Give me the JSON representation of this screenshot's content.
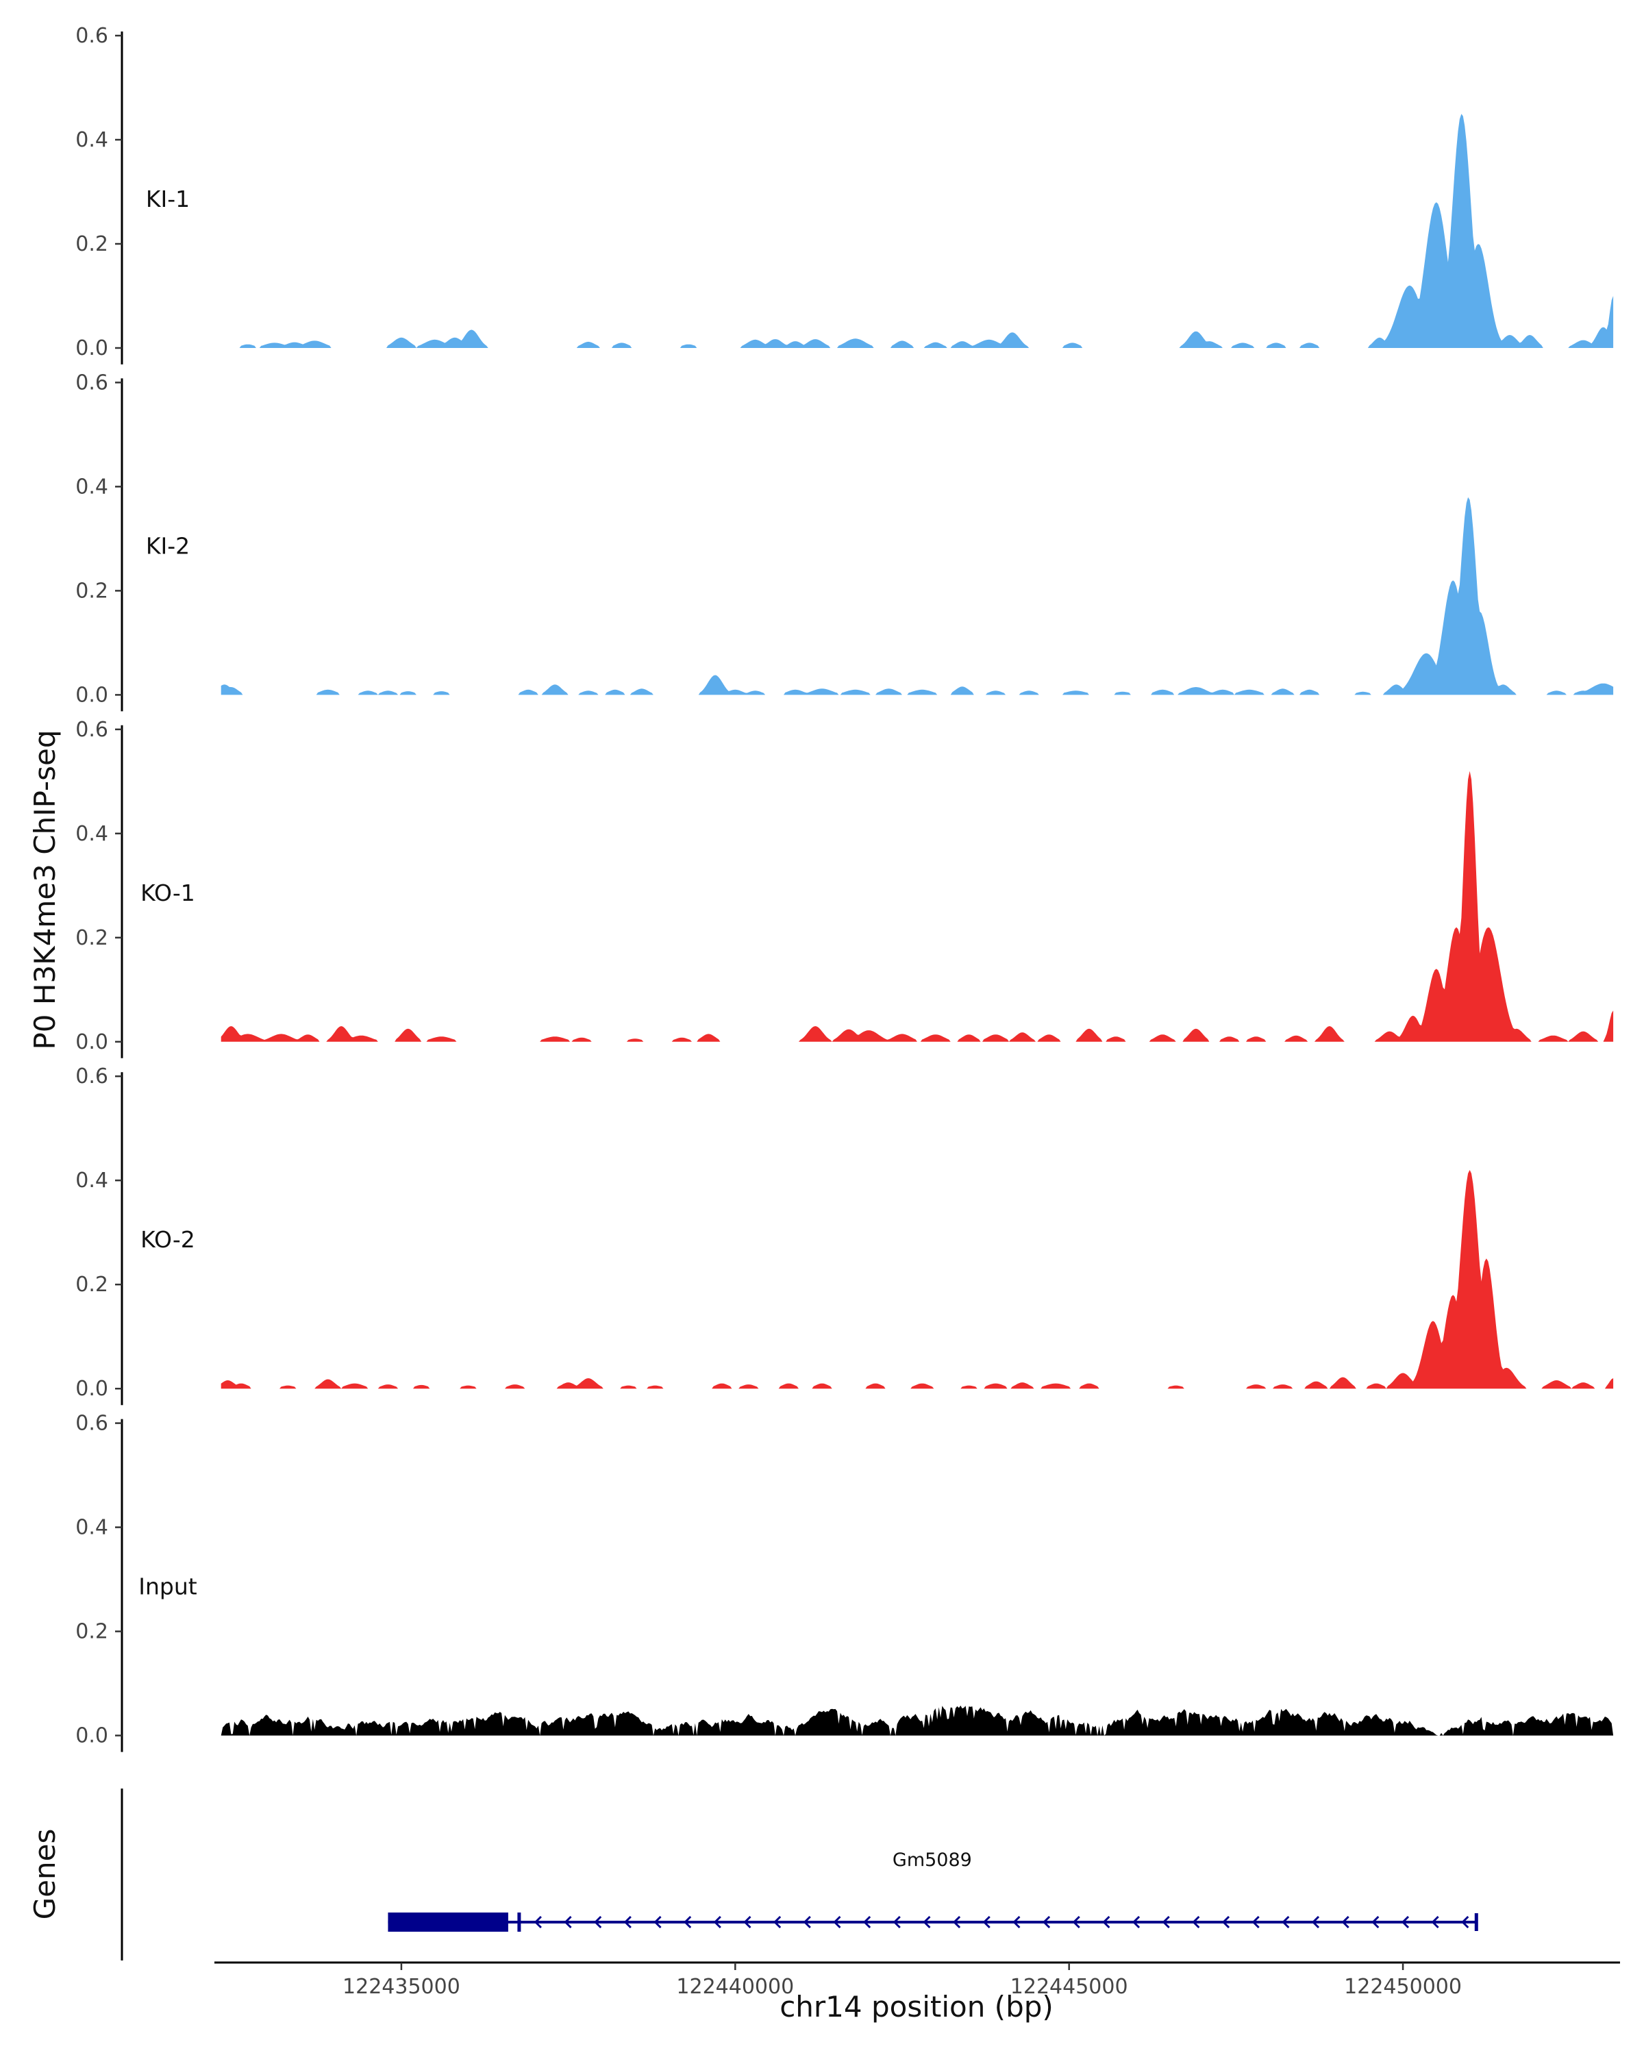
{
  "chart_data": {
    "type": "area",
    "ylabel": "P0 H3K4me3 ChIP-seq",
    "xlabel": "chr14 position (bp)",
    "genes_label": "Genes",
    "xlim": [
      122432200,
      122453200
    ],
    "ylim": [
      0,
      0.6
    ],
    "y_ticks": [
      0.0,
      0.2,
      0.4,
      0.6
    ],
    "y_tick_labels": [
      "0.0",
      "0.2",
      "0.4",
      "0.6"
    ],
    "x_ticks": [
      122435000,
      122440000,
      122445000,
      122450000
    ],
    "x_tick_labels": [
      "122435000",
      "122440000",
      "122445000",
      "122450000"
    ],
    "gene": {
      "name": "Gm5089",
      "start": 122434800,
      "end": 122451100,
      "strand": "-",
      "thick_start": 122434800,
      "thick_end": 122436600,
      "color": "#00008B"
    },
    "tracks": [
      {
        "label": "KI-1",
        "color": "#5DADEC",
        "peaks": [
          [
            122432700,
            0.007,
            100
          ],
          [
            122433100,
            0.01,
            150
          ],
          [
            122433400,
            0.011,
            130
          ],
          [
            122433700,
            0.014,
            150
          ],
          [
            122435000,
            0.02,
            120
          ],
          [
            122435500,
            0.016,
            150
          ],
          [
            122435800,
            0.02,
            120
          ],
          [
            122436050,
            0.035,
            110
          ],
          [
            122437800,
            0.012,
            100
          ],
          [
            122438300,
            0.01,
            100
          ],
          [
            122439300,
            0.007,
            100
          ],
          [
            122440300,
            0.016,
            120
          ],
          [
            122440600,
            0.017,
            110
          ],
          [
            122440900,
            0.013,
            100
          ],
          [
            122441200,
            0.017,
            120
          ],
          [
            122441800,
            0.018,
            150
          ],
          [
            122442500,
            0.014,
            100
          ],
          [
            122443000,
            0.011,
            100
          ],
          [
            122443400,
            0.013,
            100
          ],
          [
            122443800,
            0.016,
            150
          ],
          [
            122444150,
            0.03,
            110
          ],
          [
            122445050,
            0.01,
            100
          ],
          [
            122446900,
            0.032,
            110
          ],
          [
            122447100,
            0.013,
            110
          ],
          [
            122447600,
            0.01,
            110
          ],
          [
            122448100,
            0.01,
            100
          ],
          [
            122448600,
            0.01,
            100
          ],
          [
            122449650,
            0.02,
            90
          ],
          [
            122450100,
            0.12,
            180
          ],
          [
            122450500,
            0.28,
            170
          ],
          [
            122450880,
            0.45,
            140
          ],
          [
            122451130,
            0.2,
            150
          ],
          [
            122451600,
            0.025,
            110
          ],
          [
            122451900,
            0.025,
            100
          ],
          [
            122452700,
            0.015,
            120
          ],
          [
            122453000,
            0.04,
            100
          ],
          [
            122453150,
            0.1,
            60
          ]
        ]
      },
      {
        "label": "KI-2",
        "color": "#5DADEC",
        "peaks": [
          [
            122432350,
            0.02,
            100
          ],
          [
            122432450,
            0.015,
            100
          ],
          [
            122433900,
            0.01,
            120
          ],
          [
            122434500,
            0.008,
            100
          ],
          [
            122434800,
            0.008,
            100
          ],
          [
            122435100,
            0.007,
            100
          ],
          [
            122435600,
            0.007,
            100
          ],
          [
            122436900,
            0.01,
            100
          ],
          [
            122437300,
            0.02,
            100
          ],
          [
            122437800,
            0.008,
            100
          ],
          [
            122438200,
            0.01,
            100
          ],
          [
            122438600,
            0.012,
            100
          ],
          [
            122439700,
            0.038,
            110
          ],
          [
            122440000,
            0.01,
            110
          ],
          [
            122440300,
            0.008,
            100
          ],
          [
            122440900,
            0.01,
            120
          ],
          [
            122441300,
            0.012,
            150
          ],
          [
            122441800,
            0.01,
            150
          ],
          [
            122442300,
            0.012,
            120
          ],
          [
            122442800,
            0.01,
            150
          ],
          [
            122443400,
            0.016,
            100
          ],
          [
            122443900,
            0.008,
            100
          ],
          [
            122444400,
            0.008,
            100
          ],
          [
            122445100,
            0.008,
            150
          ],
          [
            122445800,
            0.006,
            120
          ],
          [
            122446400,
            0.01,
            120
          ],
          [
            122446900,
            0.015,
            150
          ],
          [
            122447300,
            0.01,
            120
          ],
          [
            122447700,
            0.01,
            150
          ],
          [
            122448200,
            0.012,
            100
          ],
          [
            122448600,
            0.01,
            100
          ],
          [
            122449400,
            0.006,
            100
          ],
          [
            122449900,
            0.02,
            100
          ],
          [
            122450350,
            0.08,
            180
          ],
          [
            122450750,
            0.22,
            150
          ],
          [
            122450980,
            0.38,
            120
          ],
          [
            122451150,
            0.16,
            130
          ],
          [
            122451500,
            0.02,
            100
          ],
          [
            122452300,
            0.008,
            100
          ],
          [
            122452700,
            0.008,
            100
          ],
          [
            122453000,
            0.022,
            180
          ]
        ]
      },
      {
        "label": "KO-1",
        "color": "#EE2C2C",
        "peaks": [
          [
            122432450,
            0.03,
            100
          ],
          [
            122432700,
            0.015,
            150
          ],
          [
            122433200,
            0.015,
            150
          ],
          [
            122433600,
            0.014,
            100
          ],
          [
            122434100,
            0.03,
            100
          ],
          [
            122434400,
            0.012,
            150
          ],
          [
            122435100,
            0.025,
            100
          ],
          [
            122435600,
            0.01,
            150
          ],
          [
            122437300,
            0.01,
            150
          ],
          [
            122437700,
            0.008,
            100
          ],
          [
            122438500,
            0.006,
            100
          ],
          [
            122439200,
            0.008,
            100
          ],
          [
            122439600,
            0.015,
            100
          ],
          [
            122441200,
            0.03,
            110
          ],
          [
            122441700,
            0.024,
            120
          ],
          [
            122442000,
            0.022,
            150
          ],
          [
            122442500,
            0.015,
            130
          ],
          [
            122443000,
            0.014,
            130
          ],
          [
            122443500,
            0.014,
            100
          ],
          [
            122443900,
            0.014,
            120
          ],
          [
            122444300,
            0.018,
            100
          ],
          [
            122444700,
            0.014,
            100
          ],
          [
            122445300,
            0.025,
            100
          ],
          [
            122445700,
            0.01,
            100
          ],
          [
            122446400,
            0.014,
            110
          ],
          [
            122446900,
            0.025,
            100
          ],
          [
            122447400,
            0.01,
            100
          ],
          [
            122447800,
            0.01,
            100
          ],
          [
            122448400,
            0.012,
            100
          ],
          [
            122448900,
            0.03,
            100
          ],
          [
            122449800,
            0.02,
            110
          ],
          [
            122450150,
            0.05,
            110
          ],
          [
            122450500,
            0.14,
            130
          ],
          [
            122450800,
            0.22,
            140
          ],
          [
            122451000,
            0.52,
            100
          ],
          [
            122451280,
            0.22,
            180
          ],
          [
            122451700,
            0.025,
            110
          ],
          [
            122452250,
            0.012,
            130
          ],
          [
            122452700,
            0.02,
            110
          ],
          [
            122453150,
            0.06,
            60
          ]
        ]
      },
      {
        "label": "KO-2",
        "color": "#EE2C2C",
        "peaks": [
          [
            122432400,
            0.016,
            100
          ],
          [
            122432600,
            0.01,
            100
          ],
          [
            122433300,
            0.006,
            100
          ],
          [
            122433900,
            0.018,
            100
          ],
          [
            122434300,
            0.01,
            130
          ],
          [
            122434800,
            0.008,
            100
          ],
          [
            122435300,
            0.007,
            100
          ],
          [
            122436000,
            0.006,
            100
          ],
          [
            122436700,
            0.008,
            100
          ],
          [
            122437500,
            0.012,
            100
          ],
          [
            122437800,
            0.02,
            110
          ],
          [
            122438400,
            0.006,
            100
          ],
          [
            122438800,
            0.006,
            100
          ],
          [
            122439800,
            0.01,
            100
          ],
          [
            122440200,
            0.008,
            100
          ],
          [
            122440800,
            0.01,
            100
          ],
          [
            122441300,
            0.01,
            100
          ],
          [
            122442100,
            0.01,
            100
          ],
          [
            122442800,
            0.01,
            110
          ],
          [
            122443500,
            0.006,
            100
          ],
          [
            122443900,
            0.01,
            120
          ],
          [
            122444300,
            0.012,
            100
          ],
          [
            122444800,
            0.01,
            150
          ],
          [
            122445300,
            0.01,
            100
          ],
          [
            122446600,
            0.006,
            100
          ],
          [
            122447800,
            0.008,
            100
          ],
          [
            122448200,
            0.008,
            100
          ],
          [
            122448700,
            0.014,
            100
          ],
          [
            122449100,
            0.022,
            100
          ],
          [
            122449600,
            0.01,
            100
          ],
          [
            122450000,
            0.03,
            120
          ],
          [
            122450450,
            0.13,
            140
          ],
          [
            122450750,
            0.18,
            130
          ],
          [
            122451000,
            0.42,
            140
          ],
          [
            122451250,
            0.25,
            120
          ],
          [
            122451550,
            0.04,
            130
          ],
          [
            122452300,
            0.016,
            120
          ],
          [
            122452700,
            0.012,
            100
          ],
          [
            122453150,
            0.02,
            60
          ]
        ]
      },
      {
        "label": "Input",
        "color": "#000000",
        "peaks": []
      }
    ]
  }
}
